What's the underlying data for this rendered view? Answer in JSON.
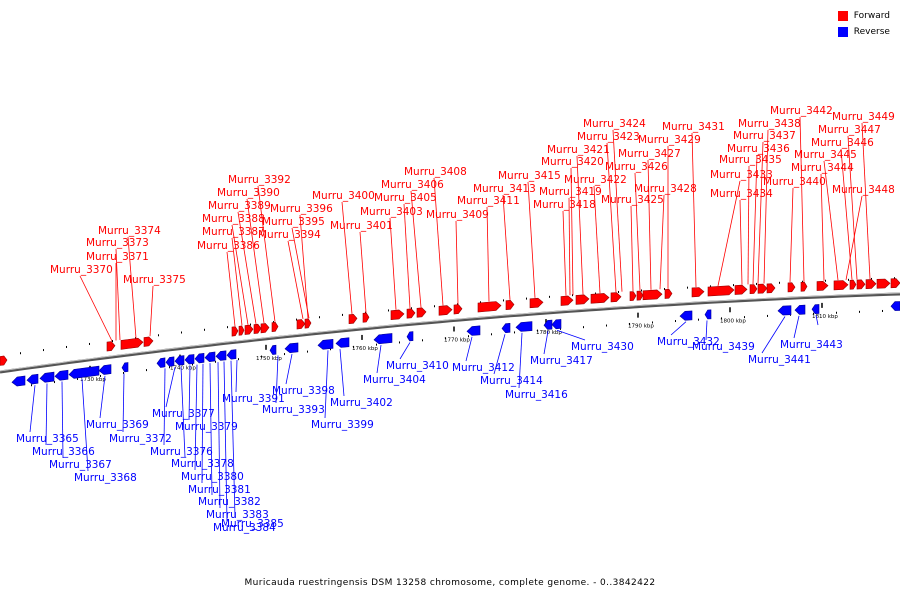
{
  "legend": {
    "forward": {
      "label": "Forward",
      "color": "#ff0000"
    },
    "reverse": {
      "label": "Reverse",
      "color": "#0000ff"
    }
  },
  "caption": "Muricauda ruestringensis DSM 13258 chromosome, complete genome. - 0..3842422",
  "ticks": [
    "1730 kbp",
    "1740 kbp",
    "1750 kbp",
    "1760 kbp",
    "1770 kbp",
    "1780 kbp",
    "1790 kbp",
    "1800 kbp",
    "1810 kbp"
  ],
  "forward_labels": [
    "Murru_3370",
    "Murru_3371",
    "Murru_3373",
    "Murru_3374",
    "Murru_3375",
    "Murru_3386",
    "Murru_3387",
    "Murru_3388",
    "Murru_3389",
    "Murru_3390",
    "Murru_3392",
    "Murru_3394",
    "Murru_3395",
    "Murru_3396",
    "Murru_3400",
    "Murru_3401",
    "Murru_3403",
    "Murru_3405",
    "Murru_3406",
    "Murru_3408",
    "Murru_3409",
    "Murru_3411",
    "Murru_3413",
    "Murru_3415",
    "Murru_3418",
    "Murru_3419",
    "Murru_3420",
    "Murru_3421",
    "Murru_3422",
    "Murru_3423",
    "Murru_3424",
    "Murru_3425",
    "Murru_3426",
    "Murru_3427",
    "Murru_3428",
    "Murru_3429",
    "Murru_3431",
    "Murru_3433",
    "Murru_3434",
    "Murru_3435",
    "Murru_3436",
    "Murru_3437",
    "Murru_3438",
    "Murru_3440",
    "Murru_3442",
    "Murru_3444",
    "Murru_3445",
    "Murru_3446",
    "Murru_3447",
    "Murru_3448",
    "Murru_3449"
  ],
  "reverse_labels": [
    "Murru_3365",
    "Murru_3366",
    "Murru_3367",
    "Murru_3368",
    "Murru_3369",
    "Murru_3372",
    "Murru_3376",
    "Murru_3377",
    "Murru_3378",
    "Murru_3379",
    "Murru_3380",
    "Murru_3381",
    "Murru_3382",
    "Murru_3383",
    "Murru_3384",
    "Murru_3385",
    "Murru_3391",
    "Murru_3393",
    "Murru_3398",
    "Murru_3399",
    "Murru_3402",
    "Murru_3404",
    "Murru_3410",
    "Murru_3412",
    "Murru_3414",
    "Murru_3416",
    "Murru_3417",
    "Murru_3430",
    "Murru_3432",
    "Murru_3439",
    "Murru_3441",
    "Murru_3443"
  ]
}
